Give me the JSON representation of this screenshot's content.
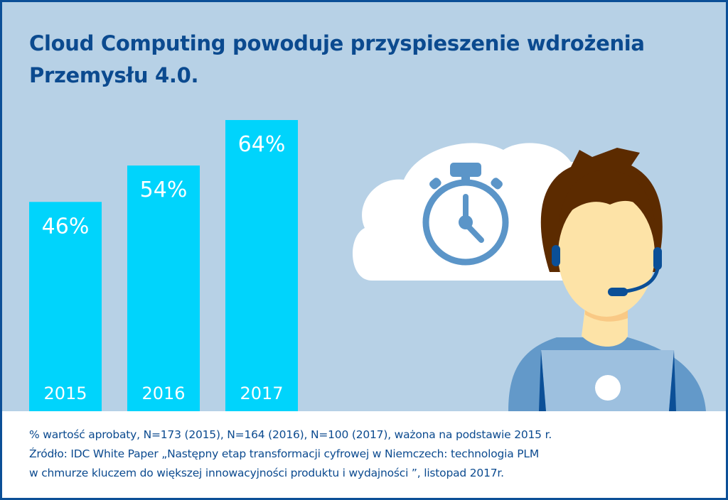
{
  "title": {
    "line1": "Cloud Computing powoduje przyspieszenie wdrożenia",
    "line2": "Przemysłu 4.0."
  },
  "colors": {
    "background": "#b7d1e6",
    "border": "#0b4f97",
    "title_text": "#0b4a8f",
    "bar": "#00d4fc",
    "cloud": "#ffffff",
    "stopwatch": "#5b95c8",
    "hair": "#5c2b00",
    "skin": "#fde3a7",
    "headset": "#0b4f97",
    "shirt": "#6399c9",
    "laptop": "#9dc0df"
  },
  "chart_data": {
    "type": "bar",
    "title": "Cloud Computing powoduje przyspieszenie wdrożenia Przemysłu 4.0.",
    "categories": [
      "2015",
      "2016",
      "2017"
    ],
    "values": [
      46,
      54,
      64
    ],
    "value_labels": [
      "46%",
      "54%",
      "64%"
    ],
    "unit": "%",
    "xlabel": "",
    "ylabel": "",
    "ylim": [
      0,
      75
    ],
    "grid": false,
    "legend": "none"
  },
  "illustration": {
    "cloud_icon": "cloud-icon",
    "stopwatch_icon": "stopwatch-icon",
    "person_icon": "support-agent-with-headset-icon",
    "laptop_icon": "laptop-icon"
  },
  "footer": {
    "line1": "% wartość aprobaty, N=173 (2015), N=164 (2016), N=100 (2017), ważona na podstawie 2015 r.",
    "line2": "Źródło: IDC White Paper „Następny etap transformacji cyfrowej w Niemczech: technologia PLM",
    "line3": "w chmurze kluczem do większej innowacyjności produktu i wydajności ”, listopad 2017r."
  }
}
